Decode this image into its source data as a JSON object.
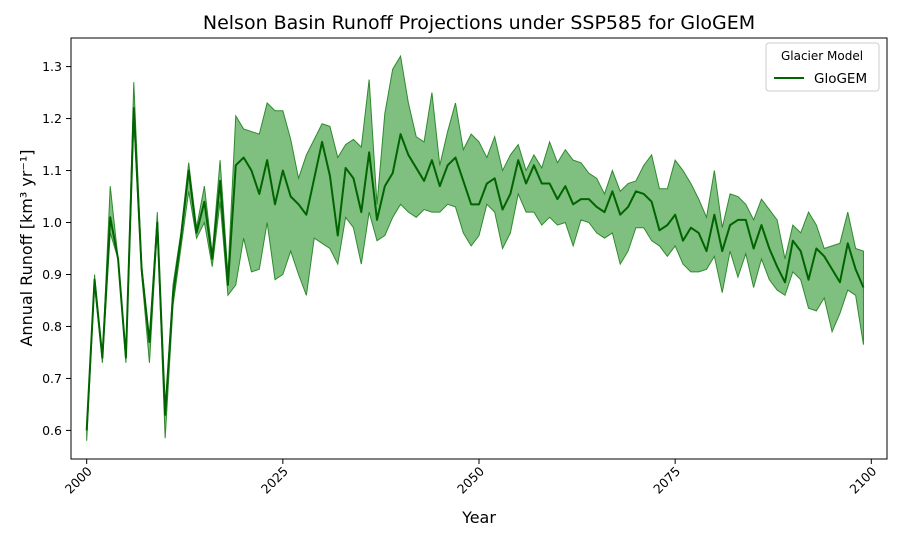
{
  "chart_data": {
    "type": "line",
    "title": "Nelson Basin Runoff Projections under SSP585 for GloGEM",
    "xlabel": "Year",
    "ylabel": "Annual Runoff [km³ yr⁻¹]",
    "xlim": [
      1998,
      2102
    ],
    "ylim": [
      0.545,
      1.355
    ],
    "xticks": [
      2000,
      2025,
      2050,
      2075,
      2100
    ],
    "yticks": [
      0.6,
      0.7,
      0.8,
      0.9,
      1.0,
      1.1,
      1.2,
      1.3
    ],
    "grid": false,
    "legend": {
      "title": "Glacier Model",
      "position": "top-right"
    },
    "colors": {
      "line": "#006400",
      "band": "#3a9c3a",
      "band_edge": "#2f8a2f"
    },
    "series": [
      {
        "name": "GloGEM",
        "x_start": 2000,
        "mean": [
          0.6,
          0.89,
          0.74,
          1.01,
          0.93,
          0.74,
          1.22,
          0.91,
          0.77,
          1.0,
          0.63,
          0.86,
          0.97,
          1.1,
          0.98,
          1.04,
          0.93,
          1.08,
          0.88,
          1.11,
          1.125,
          1.1,
          1.055,
          1.12,
          1.035,
          1.1,
          1.05,
          1.035,
          1.015,
          1.085,
          1.155,
          1.09,
          0.975,
          1.105,
          1.085,
          1.02,
          1.135,
          1.005,
          1.07,
          1.095,
          1.17,
          1.13,
          1.105,
          1.08,
          1.12,
          1.07,
          1.11,
          1.125,
          1.08,
          1.035,
          1.035,
          1.075,
          1.085,
          1.025,
          1.055,
          1.12,
          1.075,
          1.11,
          1.075,
          1.075,
          1.045,
          1.07,
          1.035,
          1.045,
          1.045,
          1.03,
          1.02,
          1.06,
          1.015,
          1.03,
          1.06,
          1.055,
          1.04,
          0.985,
          0.995,
          1.015,
          0.965,
          0.99,
          0.98,
          0.945,
          1.015,
          0.945,
          0.995,
          1.005,
          1.005,
          0.95,
          0.995,
          0.95,
          0.915,
          0.885,
          0.965,
          0.945,
          0.89,
          0.95,
          0.935,
          0.91,
          0.885,
          0.96,
          0.91,
          0.875
        ],
        "upper": [
          0.6,
          0.9,
          0.74,
          1.07,
          0.93,
          0.74,
          1.27,
          0.92,
          0.77,
          1.02,
          0.63,
          0.88,
          0.98,
          1.115,
          0.99,
          1.07,
          0.94,
          1.12,
          0.9,
          1.205,
          1.18,
          1.175,
          1.17,
          1.23,
          1.215,
          1.215,
          1.16,
          1.085,
          1.13,
          1.16,
          1.19,
          1.185,
          1.125,
          1.15,
          1.16,
          1.145,
          1.275,
          1.035,
          1.21,
          1.295,
          1.32,
          1.23,
          1.165,
          1.155,
          1.25,
          1.11,
          1.175,
          1.23,
          1.14,
          1.17,
          1.155,
          1.125,
          1.165,
          1.1,
          1.13,
          1.15,
          1.1,
          1.13,
          1.105,
          1.155,
          1.115,
          1.14,
          1.12,
          1.115,
          1.095,
          1.085,
          1.055,
          1.1,
          1.06,
          1.075,
          1.08,
          1.11,
          1.13,
          1.065,
          1.065,
          1.12,
          1.1,
          1.075,
          1.045,
          1.01,
          1.1,
          0.99,
          1.055,
          1.05,
          1.035,
          1.005,
          1.045,
          1.025,
          1.005,
          0.93,
          0.995,
          0.98,
          1.02,
          0.995,
          0.95,
          0.955,
          0.96,
          1.02,
          0.95,
          0.945
        ],
        "lower": [
          0.58,
          0.88,
          0.73,
          0.98,
          0.93,
          0.73,
          1.2,
          0.9,
          0.73,
          0.99,
          0.585,
          0.84,
          0.95,
          1.06,
          0.97,
          1.0,
          0.915,
          1.04,
          0.86,
          0.88,
          0.97,
          0.905,
          0.91,
          1.0,
          0.89,
          0.9,
          0.945,
          0.9,
          0.86,
          0.97,
          0.96,
          0.95,
          0.92,
          1.01,
          0.99,
          0.92,
          1.02,
          0.965,
          0.975,
          1.01,
          1.035,
          1.02,
          1.01,
          1.025,
          1.02,
          1.02,
          1.035,
          1.03,
          0.98,
          0.955,
          0.975,
          1.035,
          1.02,
          0.95,
          0.98,
          1.055,
          1.02,
          1.02,
          0.995,
          1.01,
          0.995,
          1.0,
          0.955,
          1.005,
          1.0,
          0.98,
          0.97,
          0.98,
          0.92,
          0.945,
          0.99,
          0.99,
          0.965,
          0.955,
          0.935,
          0.955,
          0.92,
          0.905,
          0.905,
          0.91,
          0.935,
          0.865,
          0.945,
          0.895,
          0.94,
          0.875,
          0.93,
          0.89,
          0.87,
          0.86,
          0.905,
          0.89,
          0.835,
          0.83,
          0.855,
          0.79,
          0.825,
          0.87,
          0.86,
          0.765
        ]
      }
    ]
  }
}
